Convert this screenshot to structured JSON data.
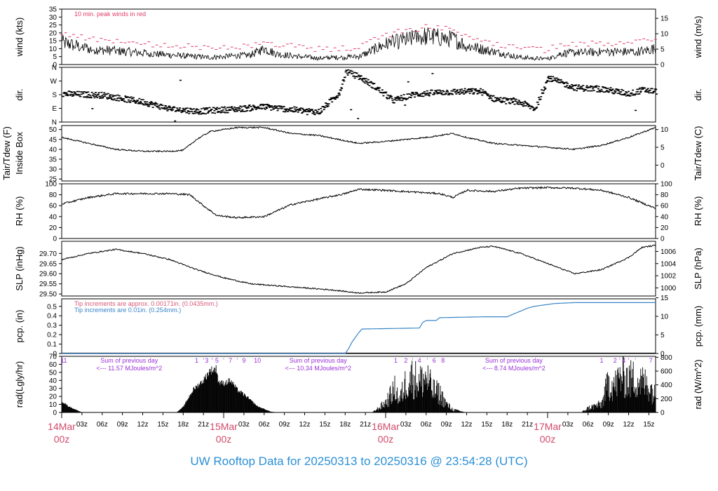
{
  "title": "UW Rooftop Data for 20250313  to  20250316 @ 23:54:28  (UTC)",
  "colors": {
    "peak": "#e0406a",
    "rain_fine": "#d85a78",
    "rain_coarse": "#3a85c8",
    "rad_note": "#9a30d8",
    "date": "#d04a6a",
    "title": "#2b8fd6",
    "line": "#000000"
  },
  "chart_data": [
    {
      "type": "line",
      "id": "wind",
      "ylabel": "wind (kts)",
      "ylabel_right": "wind (m/s)",
      "ylim": [
        0,
        35
      ],
      "yticks": [
        0,
        5,
        10,
        15,
        20,
        25,
        30,
        35
      ],
      "yticks_right": [
        {
          "label": "0",
          "v": 0
        },
        {
          "label": "5",
          "v": 9.72
        },
        {
          "label": "10",
          "v": 19.44
        },
        {
          "label": "15",
          "v": 29.16
        }
      ],
      "annotation": "10 min. peak winds in red",
      "knots": [
        [
          0,
          14
        ],
        [
          4,
          10
        ],
        [
          10,
          8
        ],
        [
          16,
          6
        ],
        [
          22,
          4.5
        ],
        [
          28,
          6
        ],
        [
          30,
          10
        ],
        [
          32,
          6.5
        ],
        [
          38,
          4
        ],
        [
          44,
          5
        ],
        [
          48,
          13
        ],
        [
          54,
          18
        ],
        [
          58,
          16
        ],
        [
          60,
          12
        ],
        [
          64,
          8
        ],
        [
          68,
          4.5
        ],
        [
          72,
          3.5
        ],
        [
          74,
          7
        ],
        [
          80,
          8
        ],
        [
          85,
          8
        ],
        [
          88,
          10
        ]
      ],
      "peak_offset": 5
    },
    {
      "type": "scatter",
      "id": "dir",
      "ylabel": "dir.",
      "ylabel_right": "dir.",
      "ylim": [
        0,
        360
      ],
      "yticks": [
        {
          "label": "N",
          "v": 0
        },
        {
          "label": "E",
          "v": 90
        },
        {
          "label": "S",
          "v": 180
        },
        {
          "label": "W",
          "v": 270
        },
        {
          "label": "N",
          "v": 360
        }
      ],
      "knots": [
        [
          0,
          185
        ],
        [
          6,
          175
        ],
        [
          12,
          130
        ],
        [
          16,
          85
        ],
        [
          20,
          70
        ],
        [
          26,
          85
        ],
        [
          30,
          100
        ],
        [
          34,
          80
        ],
        [
          38,
          65
        ],
        [
          41,
          190
        ],
        [
          42,
          330
        ],
        [
          44,
          295
        ],
        [
          46,
          240
        ],
        [
          49,
          140
        ],
        [
          52,
          180
        ],
        [
          56,
          195
        ],
        [
          60,
          200
        ],
        [
          62,
          200
        ],
        [
          64,
          150
        ],
        [
          68,
          125
        ],
        [
          70,
          85
        ],
        [
          72,
          290
        ],
        [
          74,
          255
        ],
        [
          76,
          225
        ],
        [
          80,
          215
        ],
        [
          84,
          185
        ],
        [
          86,
          210
        ],
        [
          88,
          200
        ]
      ]
    },
    {
      "type": "line",
      "id": "temp",
      "ylabel": "Tair/Tdew (F)",
      "ylabel2": "Inside Box",
      "ylabel_right": "Tair/Tdew (C)",
      "ylim": [
        24,
        52
      ],
      "yticks": [
        25,
        30,
        35,
        40,
        45,
        50
      ],
      "yticks_right": [
        {
          "label": "0",
          "v": 32
        },
        {
          "label": "5",
          "v": 41
        },
        {
          "label": "10",
          "v": 50
        }
      ],
      "knots": [
        [
          0,
          46
        ],
        [
          4,
          43
        ],
        [
          8,
          40
        ],
        [
          12,
          39
        ],
        [
          16,
          39
        ],
        [
          18,
          39.5
        ],
        [
          20,
          45
        ],
        [
          22,
          49
        ],
        [
          26,
          51
        ],
        [
          30,
          51
        ],
        [
          34,
          48
        ],
        [
          38,
          47
        ],
        [
          44,
          43
        ],
        [
          48,
          44
        ],
        [
          54,
          46
        ],
        [
          56,
          47
        ],
        [
          58,
          48
        ],
        [
          60,
          46
        ],
        [
          64,
          43
        ],
        [
          68,
          42
        ],
        [
          72,
          41
        ],
        [
          76,
          40
        ],
        [
          80,
          42
        ],
        [
          84,
          46
        ],
        [
          88,
          51
        ]
      ]
    },
    {
      "type": "line",
      "id": "rh",
      "ylabel": "RH (%)",
      "ylabel_right": "RH (%)",
      "ylim": [
        0,
        100
      ],
      "yticks": [
        0,
        20,
        40,
        60,
        80,
        100
      ],
      "yticks_right": [
        {
          "label": "0",
          "v": 0
        },
        {
          "label": "20",
          "v": 20
        },
        {
          "label": "40",
          "v": 40
        },
        {
          "label": "60",
          "v": 60
        },
        {
          "label": "80",
          "v": 80
        },
        {
          "label": "100",
          "v": 100
        }
      ],
      "knots": [
        [
          0,
          63
        ],
        [
          4,
          75
        ],
        [
          8,
          82
        ],
        [
          12,
          82
        ],
        [
          16,
          82
        ],
        [
          19,
          80
        ],
        [
          21,
          60
        ],
        [
          23,
          42
        ],
        [
          26,
          38
        ],
        [
          30,
          40
        ],
        [
          34,
          62
        ],
        [
          38,
          72
        ],
        [
          42,
          82
        ],
        [
          44,
          90
        ],
        [
          48,
          88
        ],
        [
          52,
          85
        ],
        [
          56,
          82
        ],
        [
          58,
          75
        ],
        [
          60,
          88
        ],
        [
          64,
          86
        ],
        [
          68,
          92
        ],
        [
          72,
          93
        ],
        [
          76,
          92
        ],
        [
          80,
          88
        ],
        [
          84,
          75
        ],
        [
          88,
          55
        ]
      ]
    },
    {
      "type": "line",
      "id": "slp",
      "ylabel": "SLP (inHg)",
      "ylabel_right": "SLP (hPa)",
      "ylim": [
        29.49,
        29.76
      ],
      "yticks": [
        29.5,
        29.55,
        29.6,
        29.65,
        29.7
      ],
      "yticks_right": [
        {
          "label": "1000",
          "v": 29.53
        },
        {
          "label": "1002",
          "v": 29.59
        },
        {
          "label": "1004",
          "v": 29.65
        },
        {
          "label": "1006",
          "v": 29.71
        }
      ],
      "knots": [
        [
          0,
          29.67
        ],
        [
          4,
          29.7
        ],
        [
          8,
          29.72
        ],
        [
          12,
          29.7
        ],
        [
          16,
          29.67
        ],
        [
          20,
          29.62
        ],
        [
          24,
          29.58
        ],
        [
          28,
          29.55
        ],
        [
          32,
          29.54
        ],
        [
          36,
          29.53
        ],
        [
          40,
          29.52
        ],
        [
          44,
          29.505
        ],
        [
          48,
          29.51
        ],
        [
          51,
          29.55
        ],
        [
          54,
          29.63
        ],
        [
          58,
          29.7
        ],
        [
          62,
          29.73
        ],
        [
          64,
          29.735
        ],
        [
          68,
          29.7
        ],
        [
          72,
          29.65
        ],
        [
          76,
          29.6
        ],
        [
          80,
          29.62
        ],
        [
          84,
          29.68
        ],
        [
          86,
          29.73
        ],
        [
          88,
          29.74
        ]
      ]
    },
    {
      "type": "area",
      "id": "pcp",
      "ylabel": "pcp. (in)",
      "ylabel_right": "pcp. (mm)",
      "ylim": [
        0,
        0.58
      ],
      "yticks": [
        0,
        0.1,
        0.2,
        0.3,
        0.4,
        0.5
      ],
      "yticks_right": [
        {
          "label": "0",
          "v": 0
        },
        {
          "label": "5",
          "v": 0.197
        },
        {
          "label": "10",
          "v": 0.394
        },
        {
          "label": "15",
          "v": 0.591
        }
      ],
      "notes": [
        "Tip increments are approx. 0.00171in. (0.0435mm.)",
        "Tip increments are 0.01in. (0.254mm.)"
      ],
      "steps": [
        [
          0,
          0
        ],
        [
          42,
          0
        ],
        [
          42.5,
          0.05
        ],
        [
          43,
          0.12
        ],
        [
          44,
          0.22
        ],
        [
          44.5,
          0.26
        ],
        [
          53,
          0.27
        ],
        [
          53.5,
          0.33
        ],
        [
          54,
          0.35
        ],
        [
          55.5,
          0.35
        ],
        [
          56,
          0.38
        ],
        [
          63,
          0.39
        ],
        [
          66,
          0.39
        ],
        [
          67,
          0.42
        ],
        [
          68,
          0.45
        ],
        [
          69,
          0.48
        ],
        [
          70,
          0.5
        ],
        [
          72,
          0.52
        ],
        [
          73,
          0.53
        ],
        [
          76,
          0.54
        ],
        [
          88,
          0.54
        ]
      ]
    },
    {
      "type": "area",
      "id": "rad",
      "ylabel": "rad(Lgly/hr)",
      "ylabel_right": "rad (W/m^2)",
      "ylim": [
        0,
        70
      ],
      "yticks": [
        0,
        10,
        20,
        30,
        40,
        50,
        60,
        70
      ],
      "yticks_right": [
        {
          "label": "0",
          "v": 0
        },
        {
          "label": "200",
          "v": 17.2
        },
        {
          "label": "400",
          "v": 34.4
        },
        {
          "label": "600",
          "v": 51.6
        },
        {
          "label": "800",
          "v": 68.8
        }
      ],
      "notes": [
        {
          "x": 10,
          "line1": "Sum of previous day",
          "line2": "<--- 11.57 MJoules/m^2"
        },
        {
          "x": 38,
          "line1": "Sum of previous day",
          "line2": "<--- 10.34 MJoules/m^2"
        },
        {
          "x": 67,
          "line1": "Sum of previous day",
          "line2": "<--- 8.74 MJoules/m^2"
        }
      ],
      "hour_marks": [
        {
          "x": 0.3,
          "label": "11"
        },
        {
          "x": 20,
          "label": "1"
        },
        {
          "x": 21,
          "label": "'"
        },
        {
          "x": 21.5,
          "label": "3"
        },
        {
          "x": 22.3,
          "label": "'"
        },
        {
          "x": 23,
          "label": "5"
        },
        {
          "x": 24,
          "label": "'"
        },
        {
          "x": 25,
          "label": "7"
        },
        {
          "x": 26,
          "label": "'"
        },
        {
          "x": 27,
          "label": "9"
        },
        {
          "x": 29,
          "label": "10"
        },
        {
          "x": 49.5,
          "label": "1"
        },
        {
          "x": 51,
          "label": "2"
        },
        {
          "x": 52,
          "label": "'"
        },
        {
          "x": 53,
          "label": "4"
        },
        {
          "x": 54.2,
          "label": "'"
        },
        {
          "x": 55.2,
          "label": "6"
        },
        {
          "x": 56.5,
          "label": "8"
        },
        {
          "x": 80,
          "label": "1"
        },
        {
          "x": 82,
          "label": "2"
        },
        {
          "x": 82.7,
          "label": "'"
        },
        {
          "x": 83.3,
          "label": "4"
        },
        {
          "x": 84,
          "label": "'"
        },
        {
          "x": 85,
          "label": "'"
        },
        {
          "x": 87.3,
          "label": "7"
        }
      ],
      "envelope": [
        [
          0,
          15
        ],
        [
          1,
          8
        ],
        [
          3,
          0
        ],
        [
          17,
          0
        ],
        [
          18,
          7
        ],
        [
          19.5,
          30
        ],
        [
          21,
          42
        ],
        [
          22,
          55
        ],
        [
          23,
          57
        ],
        [
          23.2,
          40
        ],
        [
          24,
          38
        ],
        [
          25,
          42
        ],
        [
          26,
          30
        ],
        [
          27.5,
          20
        ],
        [
          29,
          8
        ],
        [
          31,
          1
        ],
        [
          32,
          0
        ],
        [
          46,
          0
        ],
        [
          47,
          8
        ],
        [
          48,
          18
        ],
        [
          49.5,
          45
        ],
        [
          50,
          20
        ],
        [
          51,
          55
        ],
        [
          52,
          65
        ],
        [
          53,
          55
        ],
        [
          54,
          65
        ],
        [
          55,
          40
        ],
        [
          56,
          35
        ],
        [
          57,
          15
        ],
        [
          58,
          5
        ],
        [
          60,
          0
        ],
        [
          77,
          0
        ],
        [
          78,
          8
        ],
        [
          80,
          15
        ],
        [
          81,
          55
        ],
        [
          82,
          50
        ],
        [
          83,
          68
        ],
        [
          84,
          60
        ],
        [
          85,
          62
        ],
        [
          86,
          55
        ],
        [
          87,
          50
        ],
        [
          88,
          30
        ]
      ]
    }
  ],
  "xaxis": {
    "range": [
      0,
      88
    ],
    "hour_ticks": [
      {
        "x": 3,
        "label": "03z"
      },
      {
        "x": 6,
        "label": "06z"
      },
      {
        "x": 9,
        "label": "09z"
      },
      {
        "x": 12,
        "label": "12z"
      },
      {
        "x": 15,
        "label": "15z"
      },
      {
        "x": 18,
        "label": "18z"
      },
      {
        "x": 21,
        "label": "21z"
      },
      {
        "x": 27,
        "label": "03z"
      },
      {
        "x": 30,
        "label": "06z"
      },
      {
        "x": 33,
        "label": "09z"
      },
      {
        "x": 36,
        "label": "12z"
      },
      {
        "x": 39,
        "label": "15z"
      },
      {
        "x": 42,
        "label": "18z"
      },
      {
        "x": 45,
        "label": "21z"
      },
      {
        "x": 51,
        "label": "03z"
      },
      {
        "x": 54,
        "label": "06z"
      },
      {
        "x": 57,
        "label": "09z"
      },
      {
        "x": 60,
        "label": "12z"
      },
      {
        "x": 63,
        "label": "15z"
      },
      {
        "x": 66,
        "label": "18z"
      },
      {
        "x": 69,
        "label": "21z"
      },
      {
        "x": 75,
        "label": "03z"
      },
      {
        "x": 78,
        "label": "06z"
      },
      {
        "x": 81,
        "label": "09z"
      },
      {
        "x": 84,
        "label": "12z"
      },
      {
        "x": 87,
        "label": "15z"
      }
    ],
    "date_ticks": [
      {
        "x": 0,
        "line1": "14Mar",
        "line2": "00z"
      },
      {
        "x": 24,
        "line1": "15Mar",
        "line2": "00z"
      },
      {
        "x": 48,
        "line1": "16Mar",
        "line2": "00z"
      },
      {
        "x": 72,
        "line1": "17Mar",
        "line2": "00z"
      }
    ]
  }
}
